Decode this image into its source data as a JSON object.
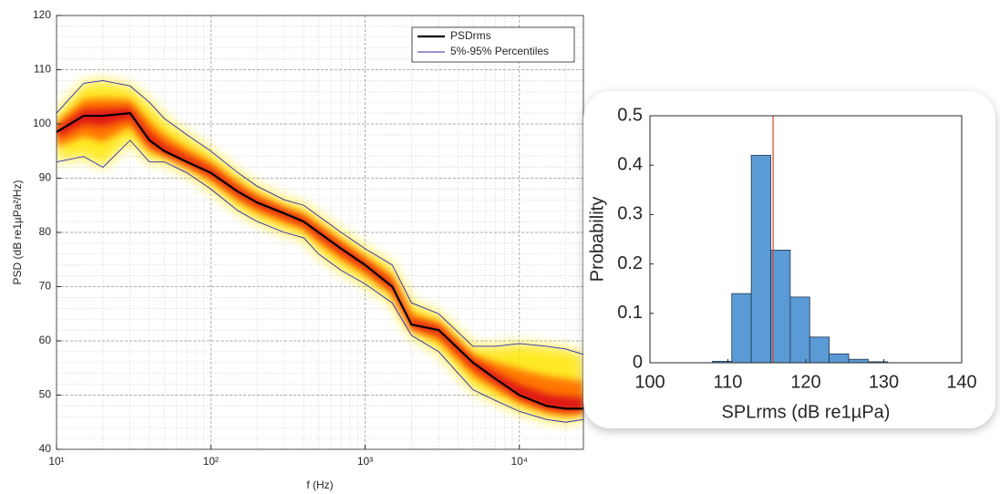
{
  "chart_data": [
    {
      "type": "line",
      "xscale": "log",
      "xlabel": "f (Hz)",
      "ylabel": "PSD (dB re1µPa²/Hz)",
      "xlim": [
        10,
        26000
      ],
      "ylim": [
        40,
        120
      ],
      "xticks": [
        {
          "value": 10,
          "label": "10¹"
        },
        {
          "value": 100,
          "label": "10²"
        },
        {
          "value": 1000,
          "label": "10³"
        },
        {
          "value": 10000,
          "label": "10⁴"
        }
      ],
      "yticks": [
        40,
        50,
        60,
        70,
        80,
        90,
        100,
        110,
        120
      ],
      "grid": true,
      "minor_grid": true,
      "legend": "upper right",
      "density_shading": true,
      "x": [
        10,
        15,
        20,
        30,
        40,
        50,
        70,
        100,
        150,
        200,
        300,
        400,
        500,
        700,
        1000,
        1500,
        2000,
        3000,
        5000,
        7000,
        10000,
        15000,
        20000,
        26000
      ],
      "series": [
        {
          "name": "PSDrms",
          "color": "#000000",
          "values": [
            98.5,
            101.5,
            101.5,
            102,
            97,
            95,
            93,
            91,
            87.5,
            85.5,
            83.5,
            82,
            80,
            77,
            74,
            70,
            63,
            62,
            56,
            53,
            50,
            48,
            47.5,
            47.5
          ]
        },
        {
          "name": "5%-95% Percentiles",
          "color": "#2b2bb0",
          "upper": [
            102,
            107.5,
            108,
            107,
            104,
            101,
            98,
            95,
            91,
            88.5,
            86,
            85,
            83,
            80,
            77,
            74,
            67,
            65,
            59,
            59,
            59.5,
            59,
            58.5,
            57.5
          ],
          "lower": [
            93,
            94,
            92,
            97,
            93,
            93,
            91,
            88,
            84,
            82,
            80,
            79,
            76,
            73,
            70.5,
            67,
            61,
            58,
            51,
            49,
            47,
            45.5,
            45,
            45.5
          ]
        }
      ]
    },
    {
      "type": "histogram",
      "xlabel": "SPLrms (dB re1µPa)",
      "ylabel": "Probability",
      "xlim": [
        100,
        140
      ],
      "ylim": [
        0,
        0.5
      ],
      "xticks": [
        100,
        110,
        120,
        130,
        140
      ],
      "yticks": [
        0,
        0.1,
        0.2,
        0.3,
        0.4,
        0.5
      ],
      "bins": [
        108,
        110.5,
        113,
        115.5,
        118,
        120.5,
        123,
        125.5,
        128,
        130.5
      ],
      "counts": [
        0.003,
        0.14,
        0.42,
        0.228,
        0.133,
        0.052,
        0.018,
        0.007,
        0.002
      ],
      "color": "#5b9bd5",
      "edgecolor": "#1f3550",
      "vline": 115.8,
      "vline_color": "#d9452b"
    }
  ]
}
